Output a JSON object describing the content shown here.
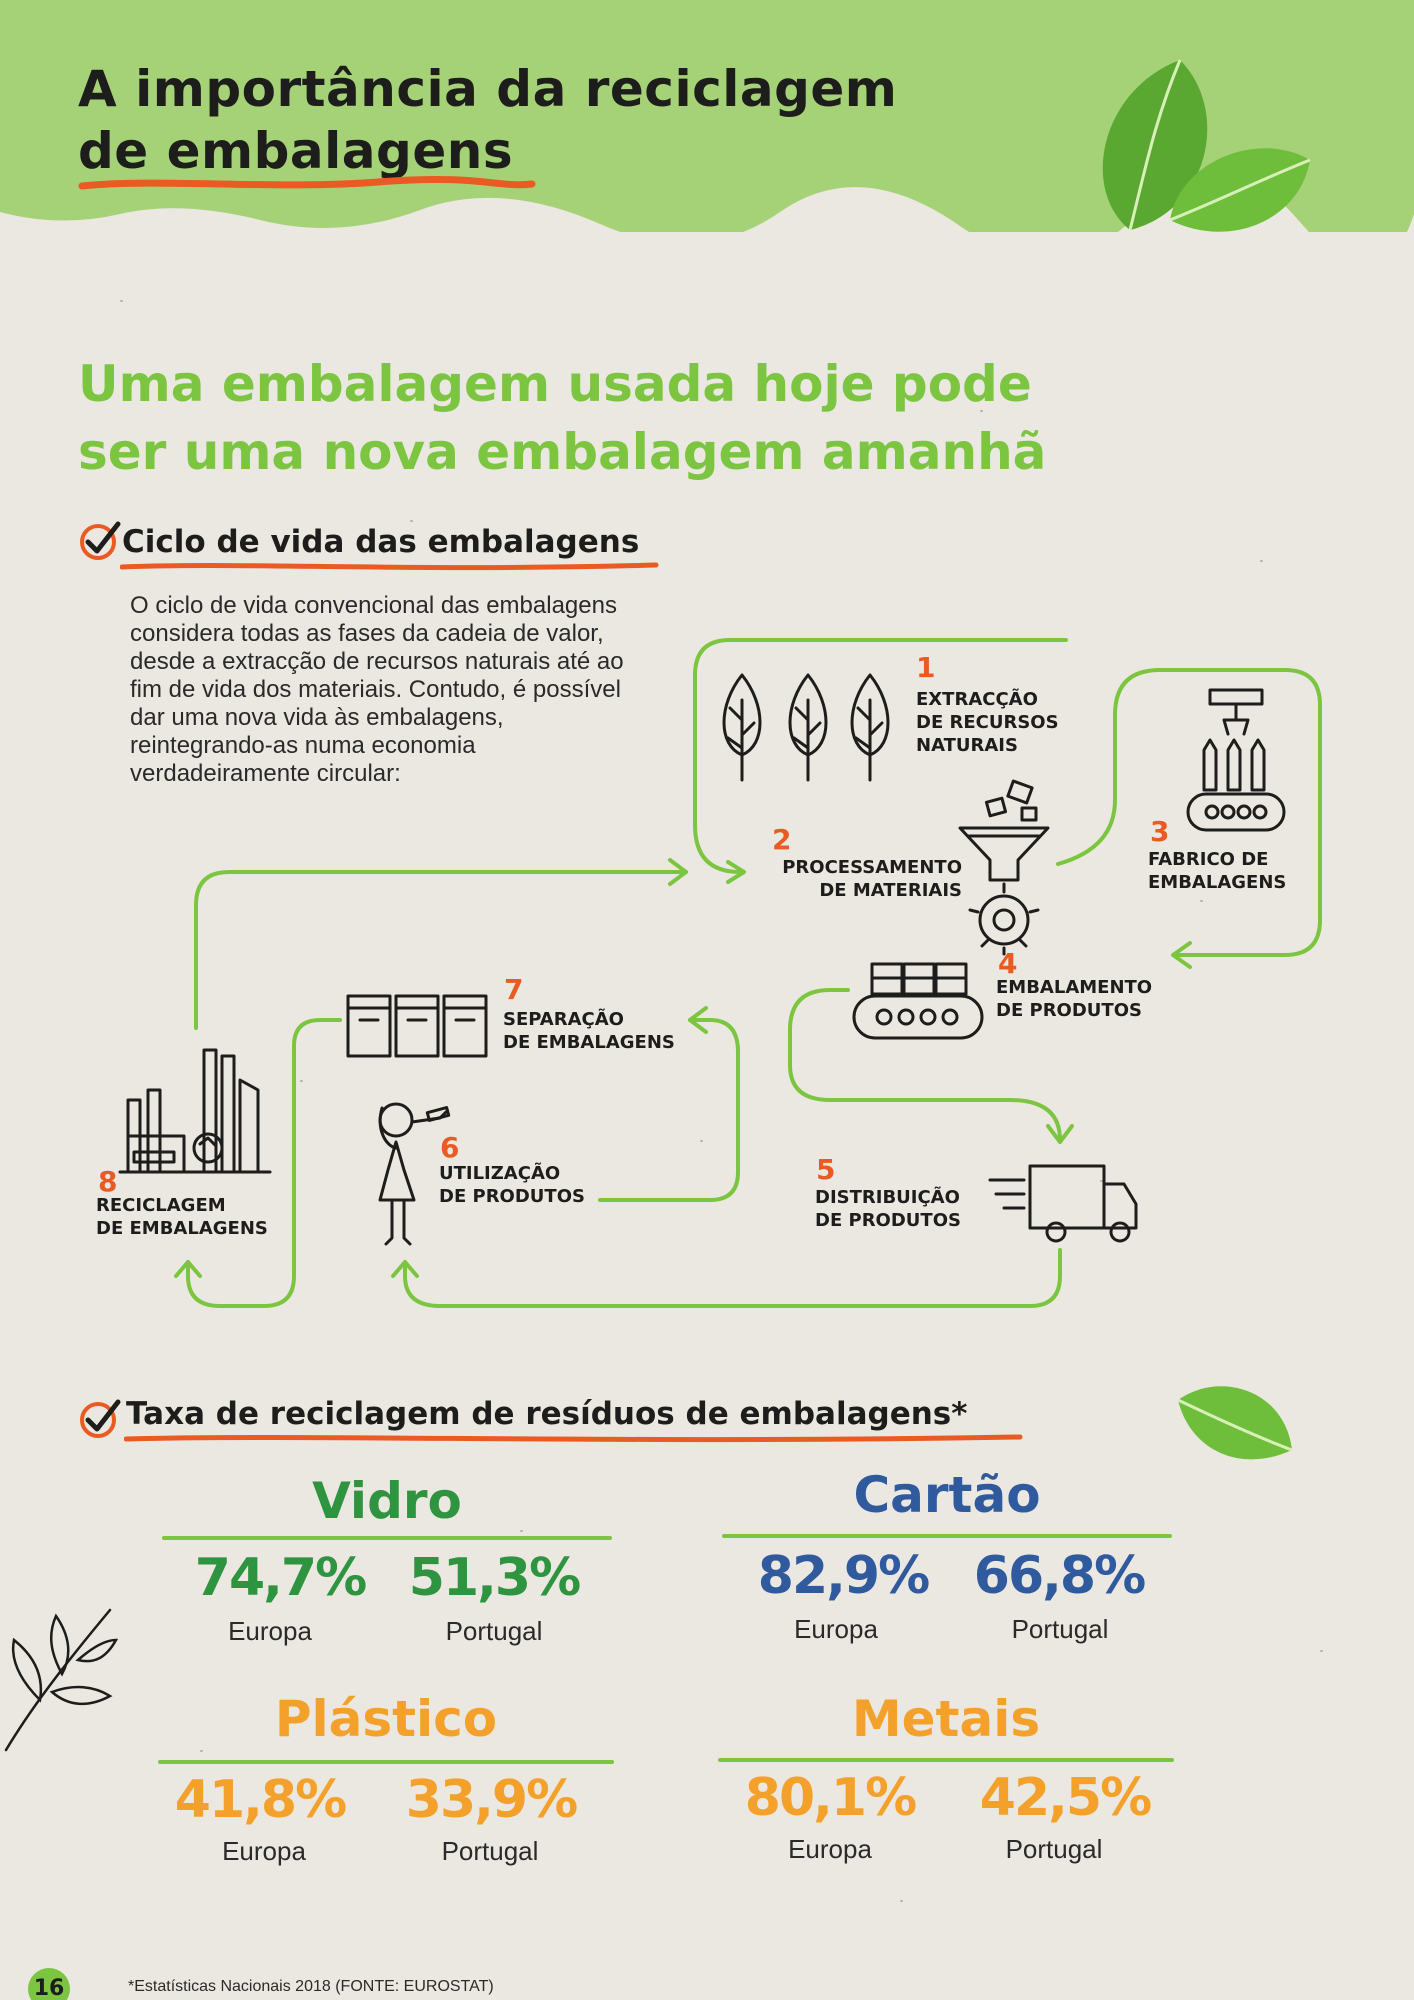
{
  "header": {
    "title_line1": "A importância da reciclagem",
    "title_line2": "de embalagens"
  },
  "subtitle": {
    "line1": "Uma embalagem usada hoje pode",
    "line2": "ser uma nova embalagem amanhã"
  },
  "cycle": {
    "section_title": "Ciclo de vida das embalagens",
    "intro": "O ciclo de vida convencional das embalagens considera todas as fases da cadeia de valor, desde a extracção de recursos naturais até ao fim de vida dos materiais. Contudo, é possível dar uma nova vida às embalagens, reintegrando-as numa economia verdadeiramente circular:",
    "stages": [
      {
        "number": "1",
        "line1": "EXTRACÇÃO",
        "line2": "DE RECURSOS",
        "line3": "NATURAIS",
        "icon": "trees-icon"
      },
      {
        "number": "2",
        "line1": "PROCESSAMENTO",
        "line2": "DE MATERIAIS",
        "icon": "processing-funnel-icon"
      },
      {
        "number": "3",
        "line1": "FABRICO DE",
        "line2": "EMBALAGENS",
        "icon": "bottling-machine-icon"
      },
      {
        "number": "4",
        "line1": "EMBALAMENTO",
        "line2": "DE PRODUTOS",
        "icon": "conveyor-boxes-icon"
      },
      {
        "number": "5",
        "line1": "DISTRIBUIÇÃO",
        "line2": "DE PRODUTOS",
        "icon": "delivery-truck-icon"
      },
      {
        "number": "6",
        "line1": "UTILIZAÇÃO",
        "line2": "DE PRODUTOS",
        "icon": "person-drinking-icon"
      },
      {
        "number": "7",
        "line1": "SEPARAÇÃO",
        "line2": "DE EMBALAGENS",
        "icon": "recycling-bins-icon"
      },
      {
        "number": "8",
        "line1": "RECICLAGEM",
        "line2": "DE EMBALAGENS",
        "icon": "recycling-factory-icon"
      }
    ]
  },
  "rates": {
    "section_title": "Taxa de reciclagem de resíduos de embalagens*",
    "materials": [
      {
        "name": "Vidro",
        "color": "#2e9440",
        "europe": "74,7%",
        "portugal": "51,3%",
        "europe_label": "Europa",
        "portugal_label": "Portugal"
      },
      {
        "name": "Cartão",
        "color": "#2f5a9e",
        "europe": "82,9%",
        "portugal": "66,8%",
        "europe_label": "Europa",
        "portugal_label": "Portugal"
      },
      {
        "name": "Plástico",
        "color": "#f3a12b",
        "europe": "41,8%",
        "portugal": "33,9%",
        "europe_label": "Europa",
        "portugal_label": "Portugal"
      },
      {
        "name": "Metais",
        "color": "#f3a12b",
        "europe": "80,1%",
        "portugal": "42,5%",
        "europe_label": "Europa",
        "portugal_label": "Portugal"
      }
    ]
  },
  "footer": {
    "page_number": "16",
    "footnote": "*Estatísticas Nacionais 2018 (FONTE: EUROSTAT)"
  },
  "colors": {
    "header_green": "#a6d277",
    "accent_green": "#7cc540",
    "accent_orange": "#ea5b24"
  }
}
